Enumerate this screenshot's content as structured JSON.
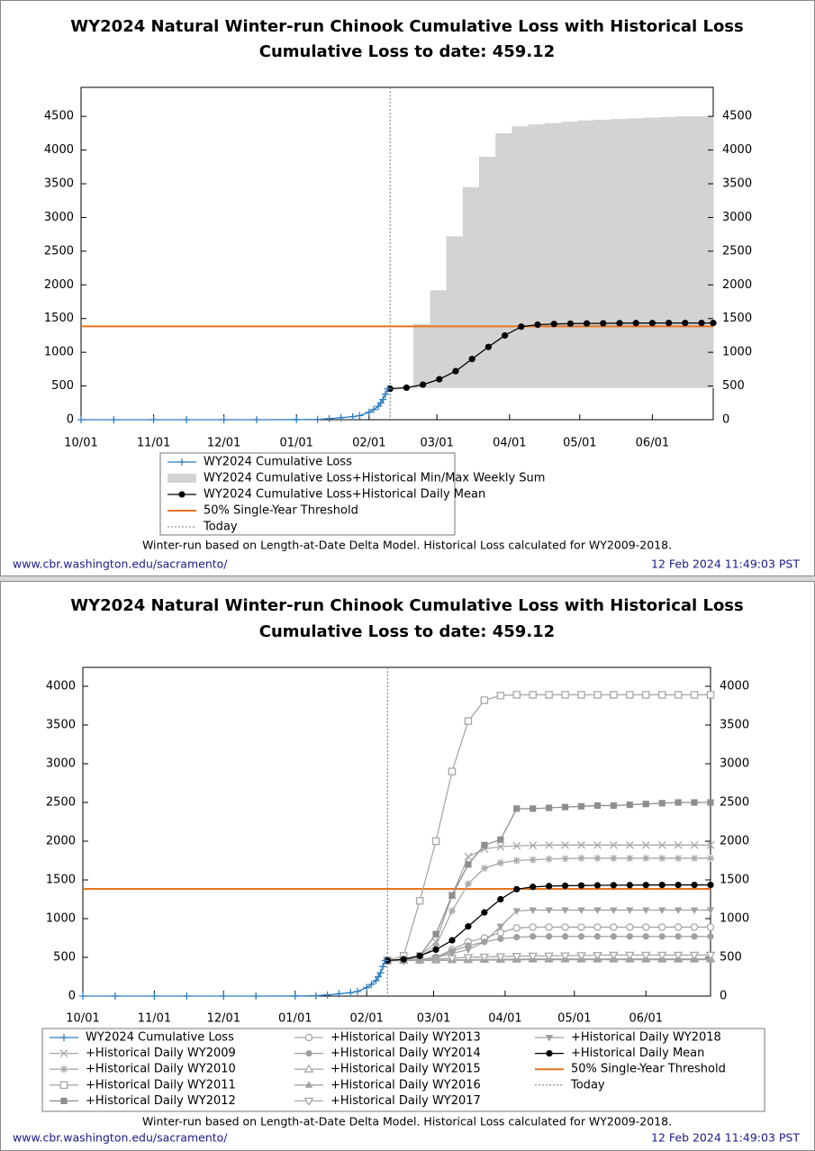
{
  "chart_data": [
    {
      "type": "line",
      "title": "WY2024 Natural Winter-run Chinook Cumulative Loss with Historical Loss",
      "subtitle": "Cumulative Loss to date: 459.12",
      "xlim": [
        "10/01",
        "06/27"
      ],
      "ylim": [
        0,
        4930
      ],
      "xticks": [
        "10/01",
        "11/01",
        "12/01",
        "01/01",
        "02/01",
        "03/01",
        "04/01",
        "05/01",
        "06/01"
      ],
      "yticks": [
        0,
        500,
        1000,
        1500,
        2000,
        2500,
        3000,
        3500,
        4000,
        4500
      ],
      "grid": false,
      "x": [
        "02/10",
        "02/17",
        "02/24",
        "03/02",
        "03/09",
        "03/16",
        "03/23",
        "03/30",
        "04/06",
        "04/13",
        "04/20",
        "04/27",
        "05/04",
        "05/11",
        "05/18",
        "05/25",
        "06/01",
        "06/08",
        "06/15",
        "06/22",
        "06/27"
      ],
      "series": [
        {
          "name": "WY2024 Cumulative Loss",
          "color": "#2f7fc1",
          "marker": "plus",
          "x": [
            "10/01",
            "10/15",
            "11/01",
            "11/15",
            "12/01",
            "12/15",
            "01/01",
            "01/10",
            "01/15",
            "01/20",
            "01/25",
            "01/28",
            "02/01",
            "02/03",
            "02/05",
            "02/06",
            "02/07",
            "02/08",
            "02/09"
          ],
          "values": [
            0,
            0,
            0,
            0,
            0,
            0,
            1,
            5,
            15,
            30,
            45,
            60,
            110,
            150,
            200,
            250,
            300,
            380,
            459.12
          ]
        },
        {
          "name": "WY2024 Cumulative Loss+Historical Min/Max Weekly Sum",
          "color": "#d3d3d3",
          "kind": "band",
          "x": [
            "02/20",
            "02/27",
            "03/05",
            "03/12",
            "03/19",
            "03/26",
            "04/02",
            "04/09",
            "04/16",
            "04/23",
            "04/30",
            "05/07",
            "05/14",
            "05/21",
            "05/28",
            "06/04",
            "06/11",
            "06/18",
            "06/25"
          ],
          "low": [
            470,
            470,
            470,
            470,
            470,
            470,
            470,
            470,
            470,
            470,
            470,
            470,
            470,
            470,
            470,
            470,
            470,
            470,
            470
          ],
          "high": [
            1420,
            1920,
            2720,
            3450,
            3900,
            4250,
            4350,
            4380,
            4400,
            4420,
            4440,
            4450,
            4460,
            4470,
            4480,
            4490,
            4500,
            4500,
            4500
          ]
        },
        {
          "name": "WY2024 Cumulative Loss+Historical Daily Mean",
          "color": "#000000",
          "marker": "circle",
          "values": [
            459,
            475,
            520,
            600,
            720,
            900,
            1080,
            1250,
            1380,
            1410,
            1420,
            1425,
            1428,
            1430,
            1432,
            1433,
            1434,
            1435,
            1435,
            1435,
            1435
          ]
        }
      ],
      "threshold": {
        "name": "50% Single-Year Threshold",
        "value": 1384,
        "color": "#e8731c"
      },
      "today": {
        "name": "Today",
        "x": "02/10"
      },
      "note": "Winter-run based on Length-at-Date Delta Model. Historical Loss calculated for WY2009-2018.",
      "source": "www.cbr.washington.edu/sacramento/",
      "timestamp": "12 Feb 2024 11:49:03 PST"
    },
    {
      "type": "line",
      "title": "WY2024 Natural Winter-run Chinook Cumulative Loss with Historical Loss",
      "subtitle": "Cumulative Loss to date: 459.12",
      "xlim": [
        "10/01",
        "06/29"
      ],
      "ylim": [
        0,
        4244
      ],
      "xticks": [
        "10/01",
        "11/01",
        "12/01",
        "01/01",
        "02/01",
        "03/01",
        "04/01",
        "05/01",
        "06/01"
      ],
      "yticks": [
        0,
        500,
        1000,
        1500,
        2000,
        2500,
        3000,
        3500,
        4000
      ],
      "grid": false,
      "x": [
        "02/10",
        "02/17",
        "02/24",
        "03/02",
        "03/09",
        "03/16",
        "03/23",
        "03/30",
        "04/06",
        "04/13",
        "04/20",
        "04/27",
        "05/04",
        "05/11",
        "05/18",
        "05/25",
        "06/01",
        "06/08",
        "06/15",
        "06/22",
        "06/29"
      ],
      "series": [
        {
          "name": "WY2024 Cumulative Loss",
          "color": "#2f7fc1",
          "marker": "plus",
          "x": [
            "10/01",
            "10/15",
            "11/01",
            "11/15",
            "12/01",
            "12/15",
            "01/01",
            "01/10",
            "01/15",
            "01/20",
            "01/25",
            "01/28",
            "02/01",
            "02/03",
            "02/05",
            "02/06",
            "02/07",
            "02/08",
            "02/09"
          ],
          "values": [
            0,
            0,
            0,
            0,
            0,
            0,
            1,
            5,
            15,
            30,
            45,
            60,
            110,
            150,
            200,
            250,
            300,
            380,
            459.12
          ]
        },
        {
          "name": "+Historical Daily WY2009",
          "color": "#a8a8a8",
          "marker": "x",
          "values": [
            459,
            470,
            520,
            700,
            1300,
            1800,
            1900,
            1930,
            1940,
            1945,
            1950,
            1950,
            1950,
            1950,
            1950,
            1950,
            1950,
            1950,
            1950,
            1950,
            1950
          ]
        },
        {
          "name": "+Historical Daily WY2010",
          "color": "#a8a8a8",
          "marker": "star",
          "values": [
            459,
            465,
            500,
            650,
            1100,
            1450,
            1650,
            1720,
            1750,
            1760,
            1770,
            1775,
            1780,
            1780,
            1780,
            1780,
            1780,
            1780,
            1780,
            1780,
            1780
          ]
        },
        {
          "name": "+Historical Daily WY2011",
          "color": "#a8a8a8",
          "marker": "square-open",
          "values": [
            459,
            520,
            1230,
            2000,
            2900,
            3550,
            3820,
            3880,
            3890,
            3890,
            3890,
            3890,
            3890,
            3890,
            3890,
            3890,
            3890,
            3890,
            3890,
            3890,
            3890
          ]
        },
        {
          "name": "+Historical Daily WY2012",
          "color": "#8e8e8e",
          "marker": "square",
          "values": [
            459,
            470,
            520,
            800,
            1300,
            1700,
            1950,
            2020,
            2420,
            2420,
            2430,
            2440,
            2450,
            2460,
            2460,
            2470,
            2480,
            2490,
            2500,
            2500,
            2500
          ]
        },
        {
          "name": "+Historical Daily WY2013",
          "color": "#a8a8a8",
          "marker": "circle-open",
          "values": [
            459,
            462,
            470,
            500,
            600,
            700,
            750,
            820,
            880,
            890,
            890,
            890,
            890,
            890,
            890,
            890,
            890,
            890,
            890,
            890,
            890
          ]
        },
        {
          "name": "+Historical Daily WY2014",
          "color": "#a0a0a0",
          "marker": "circle",
          "values": [
            459,
            460,
            465,
            500,
            580,
            650,
            700,
            740,
            760,
            770,
            770,
            770,
            770,
            770,
            770,
            770,
            770,
            770,
            770,
            770,
            770
          ]
        },
        {
          "name": "+Historical Daily WY2015",
          "color": "#a8a8a8",
          "marker": "triangle-open",
          "values": [
            459,
            460,
            462,
            465,
            468,
            470,
            472,
            475,
            478,
            480,
            480,
            480,
            480,
            480,
            480,
            480,
            480,
            480,
            480,
            480,
            480
          ]
        },
        {
          "name": "+Historical Daily WY2016",
          "color": "#a0a0a0",
          "marker": "triangle",
          "values": [
            459,
            459,
            460,
            460,
            462,
            463,
            465,
            466,
            468,
            470,
            470,
            470,
            470,
            470,
            470,
            470,
            470,
            470,
            470,
            470,
            470
          ]
        },
        {
          "name": "+Historical Daily WY2017",
          "color": "#a8a8a8",
          "marker": "triangle-down-open",
          "values": [
            459,
            460,
            470,
            480,
            490,
            500,
            505,
            510,
            515,
            518,
            520,
            522,
            525,
            528,
            530,
            530,
            530,
            530,
            530,
            530,
            530
          ]
        },
        {
          "name": "+Historical Daily WY2018",
          "color": "#a0a0a0",
          "marker": "triangle-down",
          "values": [
            459,
            460,
            470,
            500,
            550,
            600,
            700,
            900,
            1100,
            1110,
            1110,
            1110,
            1110,
            1110,
            1110,
            1110,
            1110,
            1110,
            1110,
            1110,
            1110
          ]
        },
        {
          "name": "+Historical Daily Mean",
          "color": "#000000",
          "marker": "circle",
          "values": [
            459,
            475,
            520,
            600,
            720,
            900,
            1080,
            1250,
            1380,
            1410,
            1420,
            1425,
            1428,
            1430,
            1432,
            1433,
            1434,
            1435,
            1435,
            1435,
            1435
          ]
        }
      ],
      "threshold": {
        "name": "50% Single-Year Threshold",
        "value": 1384,
        "color": "#e8731c"
      },
      "today": {
        "name": "Today",
        "x": "02/10"
      },
      "note": "Winter-run based on Length-at-Date Delta Model. Historical Loss calculated for WY2009-2018.",
      "source": "www.cbr.washington.edu/sacramento/",
      "timestamp": "12 Feb 2024 11:49:03 PST"
    }
  ]
}
